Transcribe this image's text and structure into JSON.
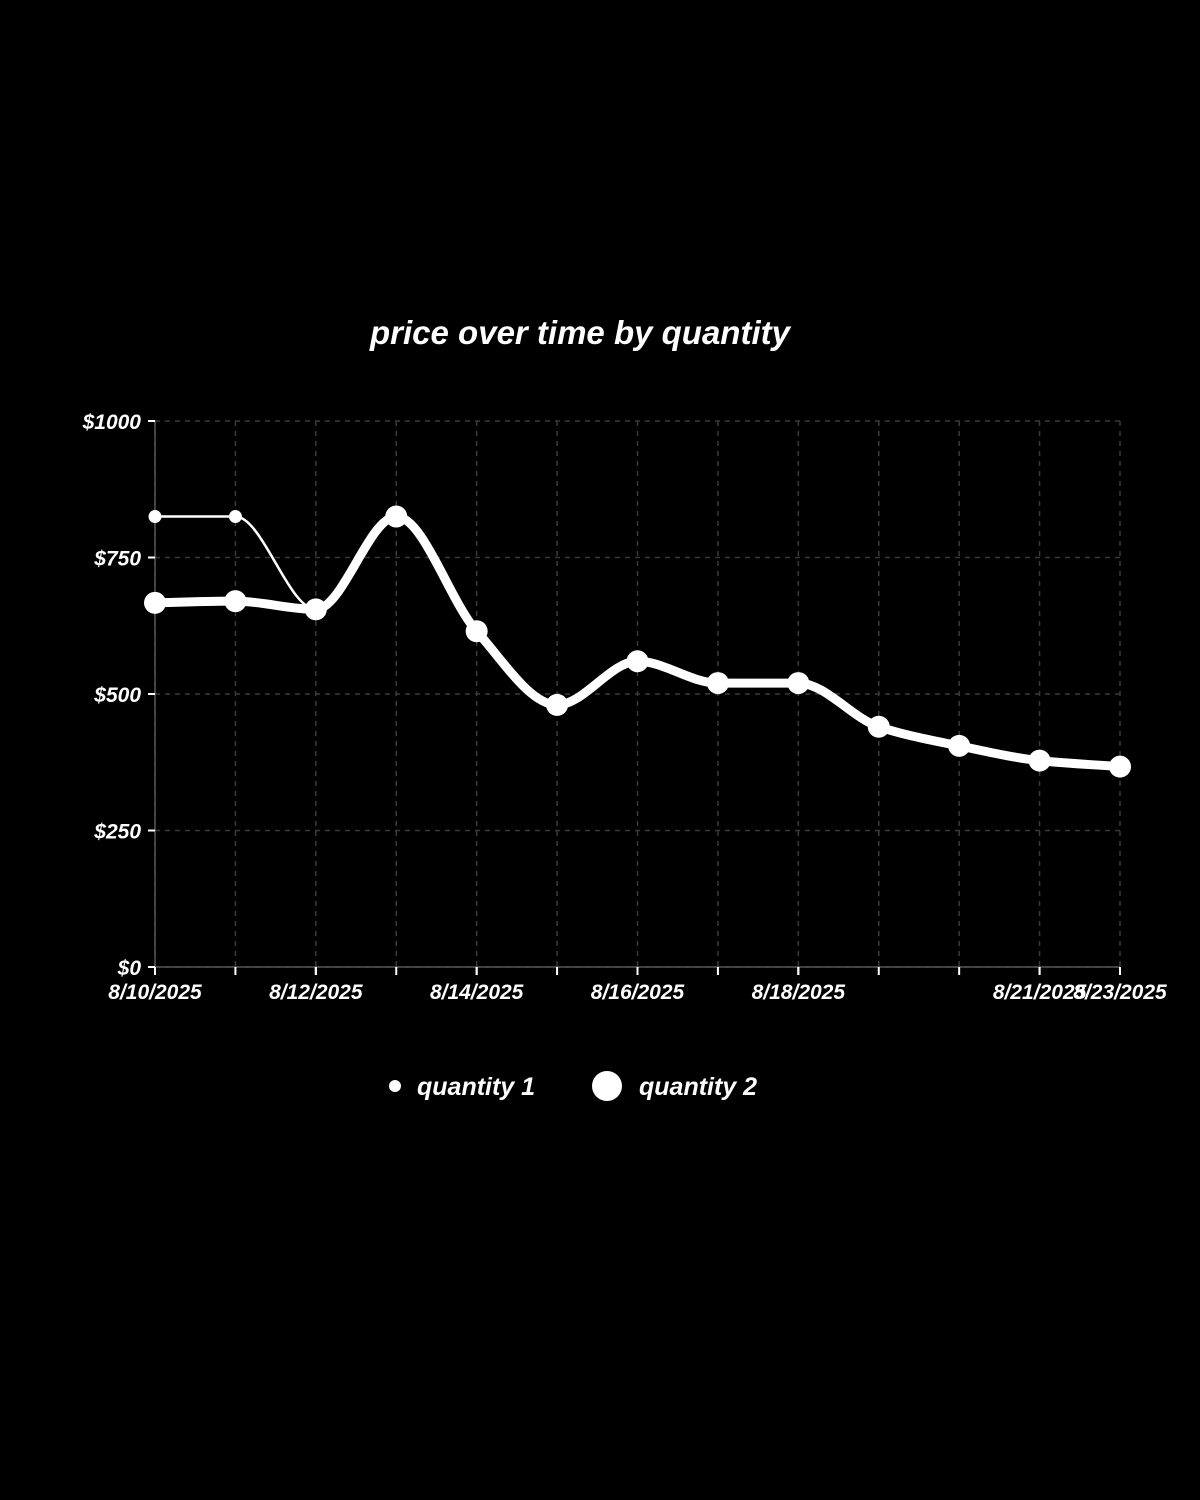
{
  "chart_data": {
    "type": "line",
    "title": "price over time by quantity",
    "xlabel": "",
    "ylabel": "",
    "x": [
      "2025-08-10",
      "2025-08-11",
      "2025-08-12",
      "2025-08-13",
      "2025-08-14",
      "2025-08-15",
      "2025-08-16",
      "2025-08-17",
      "2025-08-18",
      "2025-08-19",
      "2025-08-20",
      "2025-08-21",
      "2025-08-22"
    ],
    "x_tick_labels": [
      "8/10/2025",
      "8/12/2025",
      "8/14/2025",
      "8/16/2025",
      "8/18/2025",
      "8/21/2025",
      "8/23/2025"
    ],
    "ylim": [
      0,
      1000
    ],
    "y_tick_labels": [
      "$0",
      "$250",
      "$500",
      "$750",
      "$1000"
    ],
    "y_ticks": [
      0,
      250,
      500,
      750,
      1000
    ],
    "grid": true,
    "legend": "bottom",
    "series": [
      {
        "name": "quantity 1",
        "values": [
          825,
          825,
          655,
          825,
          615,
          480,
          560,
          520,
          520,
          440,
          405,
          378,
          367
        ]
      },
      {
        "name": "quantity 2",
        "values": [
          667,
          670,
          655,
          825,
          615,
          480,
          560,
          520,
          520,
          440,
          405,
          378,
          367
        ]
      }
    ],
    "colors": {
      "background": "#000000",
      "line": "#ffffff",
      "grid": "#3a3a3a",
      "text": "#ffffff"
    }
  }
}
